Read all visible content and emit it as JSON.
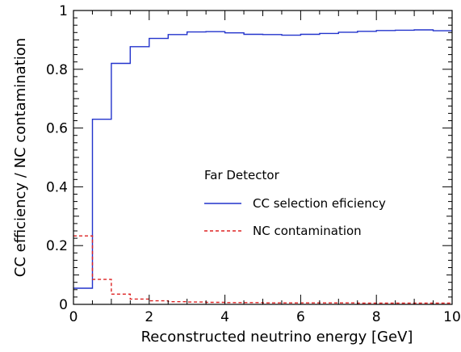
{
  "chart_data": {
    "type": "line",
    "xlabel": "Reconstructed neutrino energy [GeV]",
    "ylabel": "CC efficiency / NC contamination",
    "xlim": [
      0,
      10
    ],
    "ylim": [
      0,
      1
    ],
    "x_ticks": [
      "0",
      "2",
      "4",
      "6",
      "8",
      "10"
    ],
    "y_ticks": [
      "0",
      "0.2",
      "0.4",
      "0.6",
      "0.8",
      "1"
    ],
    "legend": {
      "title": "Far Detector",
      "placement": "center-right"
    },
    "bin_edges": [
      0,
      0.5,
      1,
      1.5,
      2,
      2.5,
      3,
      3.5,
      4,
      4.5,
      5,
      5.5,
      6,
      6.5,
      7,
      7.5,
      8,
      8.5,
      9,
      9.5,
      10
    ],
    "series": [
      {
        "name": "CC selection eficiency",
        "color": "#2233cc",
        "style": "solid",
        "values": [
          0.055,
          0.63,
          0.82,
          0.877,
          0.905,
          0.918,
          0.927,
          0.928,
          0.924,
          0.919,
          0.918,
          0.916,
          0.919,
          0.922,
          0.926,
          0.929,
          0.932,
          0.933,
          0.934,
          0.931
        ]
      },
      {
        "name": "NC contamination",
        "color": "#dd2222",
        "style": "dashed",
        "values": [
          0.233,
          0.085,
          0.035,
          0.018,
          0.012,
          0.009,
          0.008,
          0.007,
          0.006,
          0.006,
          0.005,
          0.005,
          0.005,
          0.005,
          0.005,
          0.004,
          0.004,
          0.004,
          0.004,
          0.004
        ]
      }
    ]
  }
}
